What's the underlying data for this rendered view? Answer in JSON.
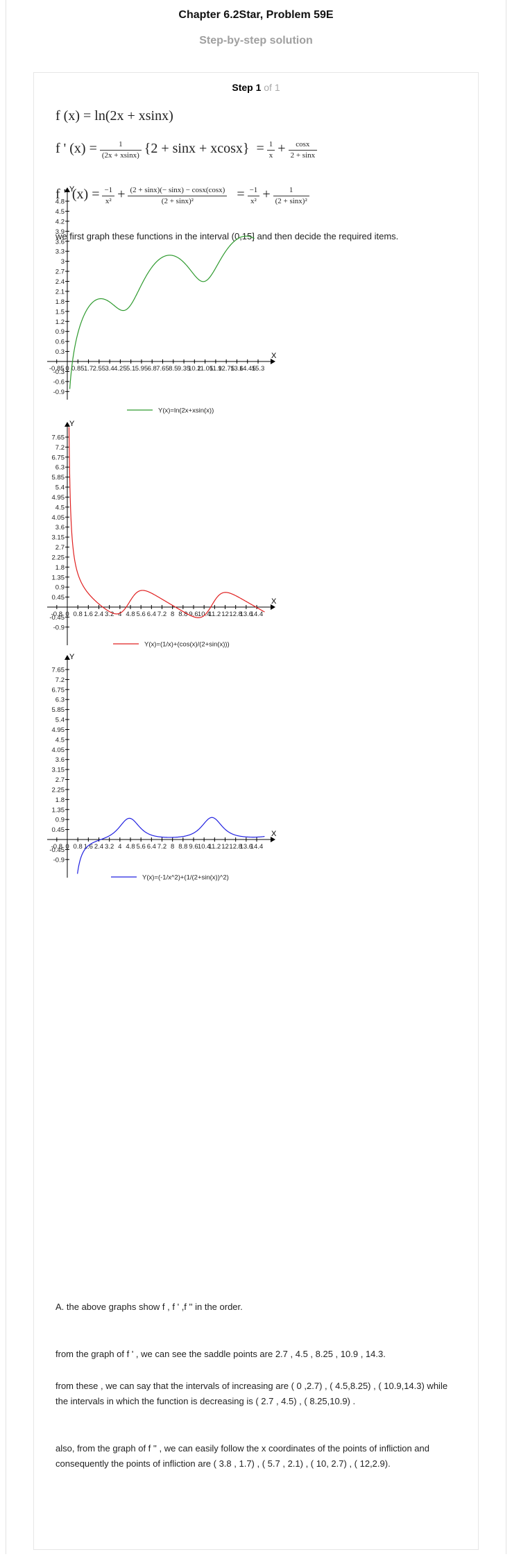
{
  "header": {
    "chapter_title": "Chapter 6.2Star, Problem 59E",
    "subtitle": "Step-by-step solution"
  },
  "step": {
    "label": "Step 1",
    "of": "of 1"
  },
  "equations": {
    "f": "f (x) = ln(2x + xsinx)",
    "f_prime_lhs": "f ' (x) =",
    "f_prime_frac_num": "1",
    "f_prime_frac_den": "(2x + xsinx)",
    "f_prime_brace": "{2 + sinx + xcosx}",
    "f_prime_eq": "=",
    "f_prime_t1_num": "1",
    "f_prime_t1_den": "x",
    "f_prime_plus": "+",
    "f_prime_t2_num": "cosx",
    "f_prime_t2_den": "2 + sinx",
    "f_dprime_lhs": "f '' (x) =",
    "f_dprime_t1_num": "−1",
    "f_dprime_t1_den": "x²",
    "f_dprime_plus": "+",
    "f_dprime_t2_num": "(2 + sinx)(− sinx) − cosx(cosx)",
    "f_dprime_t2_den": "(2 + sinx)²",
    "f_dprime_eq": "=",
    "f_dprime_t3_num": "−1",
    "f_dprime_t3_den": "x²",
    "f_dprime_plus2": "+",
    "f_dprime_t4_num": "1",
    "f_dprime_t4_den": "(2 + sinx)²"
  },
  "intro_text": "we first graph these functions in the interval (0,15] and then decide the required items.",
  "chart_data": [
    {
      "type": "line",
      "xlabel": "X",
      "ylabel": "Y",
      "xlim": [
        -1.05,
        16.3
      ],
      "ylim": [
        -1.05,
        5.0
      ],
      "x_ticks": [
        -0.85,
        0,
        0.85,
        1.7,
        2.55,
        3.4,
        4.25,
        5.1,
        5.95,
        6.8,
        7.65,
        8.5,
        9.35,
        10.2,
        11.05,
        11.9,
        12.75,
        13.6,
        14.45,
        15.3
      ],
      "x_tick_labels": [
        "-0.85",
        "0",
        "0.85",
        "1.7",
        "2.55",
        "3.4",
        "4.25",
        "5.1",
        "5.95",
        "6.8",
        "7.65",
        "8.5",
        "9.35",
        "10.2",
        "11.05",
        "11.9",
        "12.75",
        "13.6",
        "14.45",
        "15.3"
      ],
      "y_ticks": [
        -0.9,
        -0.6,
        -0.3,
        0.3,
        0.6,
        0.9,
        1.2,
        1.5,
        1.8,
        2.1,
        2.4,
        2.7,
        3,
        3.3,
        3.6,
        3.9,
        4.2,
        4.5,
        4.8
      ],
      "y_tick_labels": [
        "-0.9",
        "-0.6",
        "-0.3",
        "0.3",
        "0.6",
        "0.9",
        "1.2",
        "1.5",
        "1.8",
        "2.1",
        "2.4",
        "2.7",
        "3",
        "3.3",
        "3.6",
        "3.9",
        "4.2",
        "4.5",
        "4.8"
      ],
      "series": [
        {
          "name": "Y(x)=ln(2x+xsin(x))",
          "color": "#2e9a2e",
          "fn": "f",
          "x": [
            0.2,
            0.5,
            1,
            1.5,
            2,
            2.5,
            3,
            3.5,
            4,
            4.5,
            5,
            5.5,
            6,
            6.5,
            7,
            7.5,
            8,
            8.5,
            9,
            9.5,
            10,
            10.5,
            11,
            11.5,
            12,
            12.5,
            13,
            13.5,
            14,
            14.5,
            15
          ],
          "y": [
            -0.83,
            0.54,
            1.27,
            1.63,
            1.8,
            1.86,
            1.83,
            1.73,
            1.59,
            1.57,
            1.84,
            2.3,
            2.71,
            3.0,
            3.17,
            3.22,
            3.19,
            3.07,
            2.88,
            2.61,
            2.42,
            2.53,
            2.98,
            3.35,
            3.57,
            3.69,
            3.73,
            3.68,
            3.54,
            3.32,
            3.33
          ]
        }
      ],
      "legend": "bottom-center"
    },
    {
      "type": "line",
      "xlabel": "X",
      "ylabel": "Y",
      "xlim": [
        -1.0,
        16.2
      ],
      "ylim": [
        -1.05,
        8.1
      ],
      "x_ticks": [
        -0.8,
        0,
        0.8,
        1.6,
        2.4,
        3.2,
        4,
        4.8,
        5.6,
        6.4,
        7.2,
        8,
        8.8,
        9.6,
        10.4,
        11.2,
        12,
        12.8,
        13.6,
        14.4
      ],
      "x_tick_labels": [
        "-0.8",
        "0",
        "0.8",
        "1.6",
        "2.4",
        "3.2",
        "4",
        "4.8",
        "5.6",
        "6.4",
        "7.2",
        "8",
        "8.8",
        "9.6",
        "10.4",
        "11.2",
        "12",
        "12.8",
        "13.6",
        "14.4"
      ],
      "y_ticks": [
        -0.9,
        -0.45,
        0.45,
        0.9,
        1.35,
        1.8,
        2.25,
        2.7,
        3.15,
        3.6,
        4.05,
        4.5,
        4.95,
        5.4,
        5.85,
        6.3,
        6.75,
        7.2,
        7.65
      ],
      "y_tick_labels": [
        "-0.9",
        "-0.45",
        "0.45",
        "0.9",
        "1.35",
        "1.8",
        "2.25",
        "2.7",
        "3.15",
        "3.6",
        "4.05",
        "4.5",
        "4.95",
        "5.4",
        "5.85",
        "6.3",
        "6.75",
        "7.2",
        "7.65"
      ],
      "series": [
        {
          "name": "Y(x)=(1/x)+(cos(x)/(2+sin(x)))",
          "color": "#e02020",
          "fn": "fp",
          "x": [
            0.13,
            0.2,
            0.3,
            0.5,
            0.75,
            1,
            1.5,
            2,
            2.5,
            3,
            3.5,
            4,
            4.5,
            5,
            5.5,
            6,
            6.5,
            7,
            7.5,
            8,
            8.5,
            9,
            9.5,
            10,
            10.5,
            11,
            11.5,
            12,
            12.5,
            13,
            13.5,
            14,
            14.5,
            15
          ],
          "y": [
            8.1,
            5.5,
            3.7,
            2.4,
            1.7,
            1.32,
            0.69,
            0.31,
            0.06,
            -0.13,
            -0.24,
            -0.25,
            -0.04,
            0.23,
            0.37,
            0.43,
            0.4,
            0.3,
            0.18,
            0.07,
            -0.04,
            -0.14,
            -0.21,
            -0.16,
            0.02,
            0.2,
            0.31,
            0.35,
            0.32,
            0.24,
            0.13,
            0.03,
            -0.06,
            -0.13
          ]
        },
        {
          "name": "",
          "color": "#e02020",
          "fn": "fp",
          "x": [
            -0.4,
            -0.3,
            -0.2,
            -0.13
          ],
          "y": [
            -0.2,
            -0.6,
            -1.1,
            -1.5
          ]
        }
      ],
      "legend": "bottom-center"
    },
    {
      "type": "line",
      "xlabel": "X",
      "ylabel": "Y",
      "xlim": [
        -1.0,
        16.2
      ],
      "ylim": [
        -1.05,
        8.1
      ],
      "x_ticks": [
        -0.8,
        0,
        0.8,
        1.6,
        2.4,
        3.2,
        4,
        4.8,
        5.6,
        6.4,
        7.2,
        8,
        8.8,
        9.6,
        10.4,
        11.2,
        12,
        12.8,
        13.6,
        14.4
      ],
      "x_tick_labels": [
        "-0.8",
        "0",
        "0.8",
        "1.6",
        "2.4",
        "3.2",
        "4",
        "4.8",
        "5.6",
        "6.4",
        "7.2",
        "8",
        "8.8",
        "9.6",
        "10.4",
        "11.2",
        "12",
        "12.8",
        "13.6",
        "14.4"
      ],
      "y_ticks": [
        -0.9,
        -0.45,
        0.45,
        0.9,
        1.35,
        1.8,
        2.25,
        2.7,
        3.15,
        3.6,
        4.05,
        4.5,
        4.95,
        5.4,
        5.85,
        6.3,
        6.75,
        7.2,
        7.65
      ],
      "y_tick_labels": [
        "-0.9",
        "-0.45",
        "0.45",
        "0.9",
        "1.35",
        "1.8",
        "2.25",
        "2.7",
        "3.15",
        "3.6",
        "4.05",
        "4.5",
        "4.95",
        "5.4",
        "5.85",
        "6.3",
        "6.75",
        "7.2",
        "7.65"
      ],
      "series": [
        {
          "name": "Y(x)=(-1/x^2)+(1/(2+sin(x))^2)",
          "color": "#2020e0",
          "fn": "fpp",
          "x": [
            0.7,
            0.9,
            1.2,
            1.6,
            2,
            2.5,
            3,
            3.5,
            4,
            4.5,
            4.7,
            5,
            5.5,
            6,
            6.5,
            7,
            7.5,
            8,
            8.5,
            9,
            9.5,
            10,
            10.5,
            11,
            11.5,
            12,
            12.5,
            13,
            13.5,
            14,
            14.5,
            15
          ],
          "y": [
            -1.05,
            -0.7,
            -0.4,
            -0.15,
            0.01,
            0.1,
            0.15,
            0.25,
            0.52,
            0.87,
            0.95,
            0.84,
            0.44,
            0.22,
            0.13,
            0.1,
            0.1,
            0.12,
            0.15,
            0.25,
            0.45,
            0.78,
            0.98,
            0.82,
            0.45,
            0.22,
            0.13,
            0.1,
            0.1,
            0.11,
            0.15,
            0.18
          ]
        },
        {
          "name": "",
          "color": "#2020e0",
          "fn": "fpp",
          "x": [
            -0.6,
            -0.45,
            -0.35
          ],
          "y": [
            -0.3,
            -1.0,
            -1.5
          ]
        }
      ],
      "legend": "bottom-center"
    }
  ],
  "answer": {
    "para_a": "A. the above graphs show f ,  f  ' ,f  '' in the order.",
    "para_b": " from the graph of f ' , we can see the saddle points are 2.7 , 4.5 , 8.25 , 10.9 , 14.3.",
    "para_c": "from these , we can say that the intervals of increasing are ( 0 ,2.7) , ( 4.5,8.25) , ( 10.9,14.3)  while the intervals in which the function is decreasing is ( 2.7 , 4.5) , ( 8.25,10.9) .",
    "para_d": "also, from the graph of f '' , we can easily follow the x coordinates of the points of infliction and consequently the points of infliction are  ( 3.8 , 1.7) , ( 5.7 , 2.1) , ( 10, 2.7) , ( 12,2.9)."
  }
}
